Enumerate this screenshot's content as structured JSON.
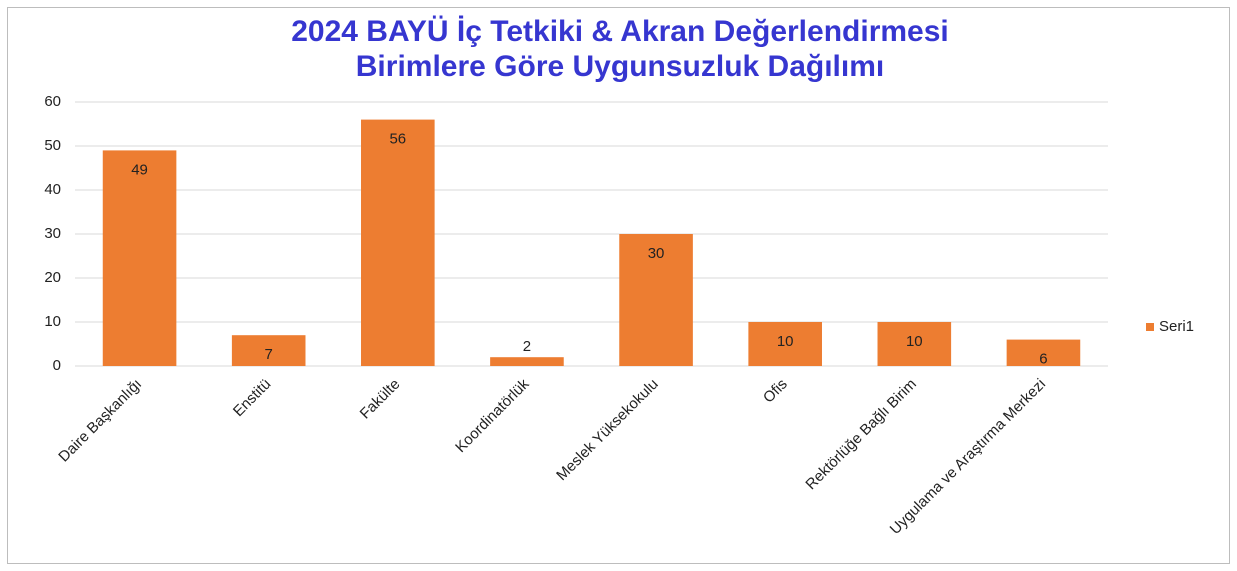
{
  "chart_data": {
    "type": "bar",
    "title": [
      "2024 BAYÜ İç Tetkiki & Akran Değerlendirmesi",
      "Birimlere Göre Uygunsuzluk Dağılımı"
    ],
    "categories": [
      "Daire Başkanlığı",
      "Enstitü",
      "Fakülte",
      "Koordinatörlük",
      "Meslek Yüksekokulu",
      "Ofis",
      "Rektörlüğe Bağlı Birim",
      "Uygulama ve Araştırma Merkezi"
    ],
    "series": [
      {
        "name": "Seri1",
        "color": "#ed7d31",
        "values": [
          49,
          7,
          56,
          2,
          30,
          10,
          10,
          6
        ]
      }
    ],
    "ylim": [
      0,
      60
    ],
    "yticks": [
      0,
      10,
      20,
      30,
      40,
      50,
      60
    ],
    "grid": true,
    "legend": "right"
  }
}
